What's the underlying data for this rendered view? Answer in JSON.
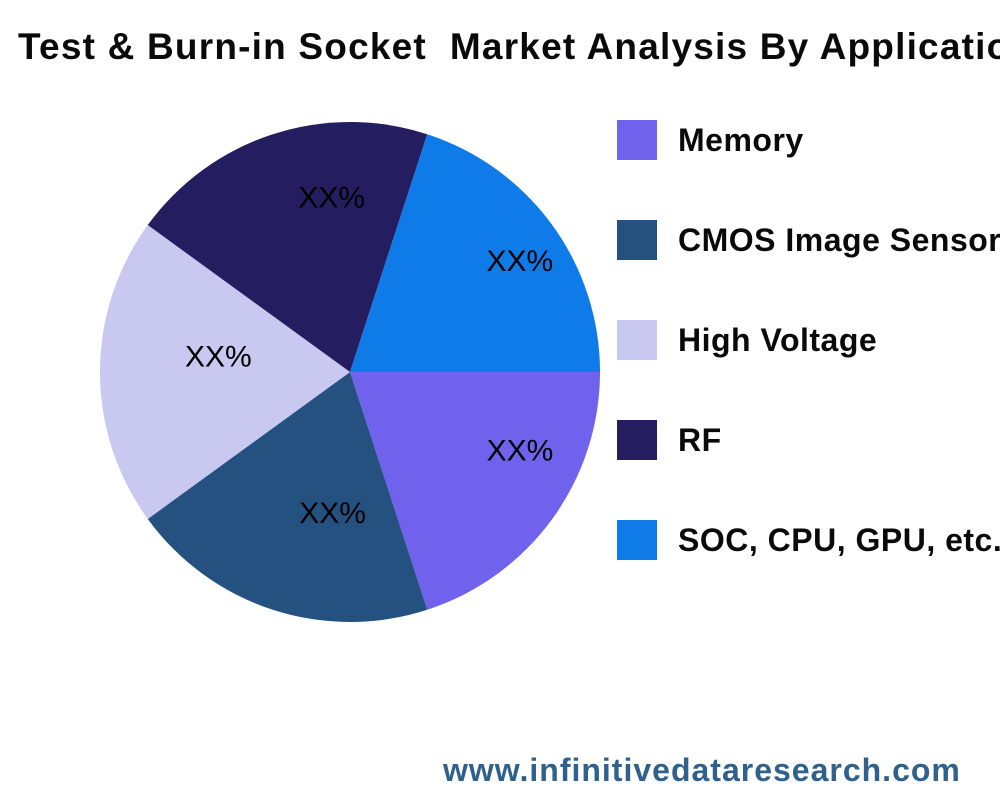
{
  "title": "Test & Burn-in Socket  Market Analysis By Application",
  "chart_data": {
    "type": "pie",
    "title": "Test & Burn-in Socket  Market Analysis By Application",
    "categories": [
      "Memory",
      "CMOS Image Sensor",
      "High Voltage",
      "RF",
      "SOC, CPU, GPU, etc."
    ],
    "values": [
      20,
      20,
      20,
      20,
      20
    ],
    "unit": "percent",
    "slice_labels": [
      "XX%",
      "XX%",
      "XX%",
      "XX%",
      "XX%"
    ],
    "colors": [
      "#7062ec",
      "#255181",
      "#c9c8f0",
      "#241d5f",
      "#0e7be8"
    ],
    "start_angle_deg": 0,
    "direction": "clockwise",
    "legend_position": "right",
    "slice_label_color": "#000000",
    "background_color": "#ffffff"
  },
  "legend": {
    "items": [
      {
        "label": "Memory",
        "color": "#7062ec"
      },
      {
        "label": "CMOS Image Sensor",
        "color": "#255181"
      },
      {
        "label": "High Voltage",
        "color": "#c9c8f0"
      },
      {
        "label": "RF",
        "color": "#241d5f"
      },
      {
        "label": "SOC, CPU, GPU, etc.",
        "color": "#0e7be8"
      }
    ]
  },
  "footer": {
    "website": "www.infinitivedataresearch.com",
    "color": "#2f618c"
  }
}
